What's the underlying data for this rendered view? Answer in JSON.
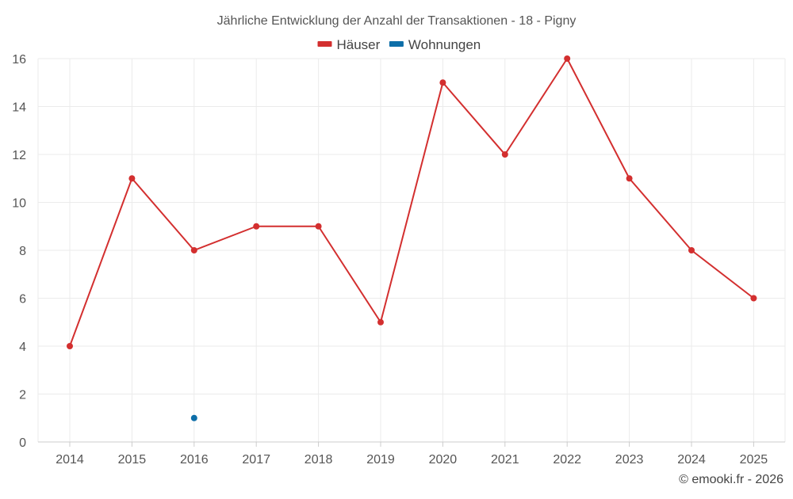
{
  "chart_data": {
    "type": "line",
    "title": "Jährliche Entwicklung der Anzahl der Transaktionen - 18 - Pigny",
    "categories": [
      "2014",
      "2015",
      "2016",
      "2017",
      "2018",
      "2019",
      "2020",
      "2021",
      "2022",
      "2023",
      "2024",
      "2025"
    ],
    "series": [
      {
        "name": "Häuser",
        "color": "#d32f2f",
        "values": [
          4,
          11,
          8,
          9,
          9,
          5,
          15,
          12,
          16,
          11,
          8,
          6
        ]
      },
      {
        "name": "Wohnungen",
        "color": "#0d6ea8",
        "values": [
          null,
          null,
          1,
          null,
          null,
          null,
          null,
          null,
          null,
          null,
          null,
          null
        ]
      }
    ],
    "ylim": [
      0,
      16
    ],
    "yticks": [
      0,
      2,
      4,
      6,
      8,
      10,
      12,
      14,
      16
    ],
    "xlabel": "",
    "ylabel": "",
    "grid": true,
    "legend": "top-center"
  },
  "credit": "© emooki.fr - 2026"
}
